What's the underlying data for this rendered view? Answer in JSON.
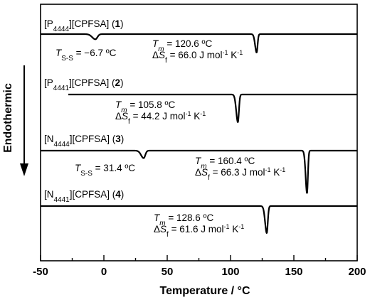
{
  "chart_data": {
    "type": "line",
    "xlabel": "Temperature / °C",
    "ylabel": "Endothermic",
    "xlim": [
      -50,
      200
    ],
    "x_ticks": [
      -50,
      0,
      50,
      100,
      150,
      200
    ],
    "grid": false,
    "series": [
      {
        "name_parts": {
          "cation": "P",
          "sub": "4444",
          "anion": "][CPFSA] (",
          "num": "1",
          "close": ")"
        },
        "peaks": [
          {
            "x": -6.7,
            "depth": 0.28,
            "width": 2.5,
            "kind": "solid-solid"
          },
          {
            "x": 120.6,
            "depth": 1.0,
            "width": 1.2,
            "kind": "melting"
          }
        ],
        "annotations": [
          {
            "type": "tss",
            "symbol": "T",
            "sub": "S-S",
            "text": " = −6.7 ºC"
          },
          {
            "type": "tm",
            "line1_symbol": "T",
            "line1_sub": "m",
            "line1_text": " = 120.6 ºC",
            "line2_prefix": "Δ",
            "line2_symbol": "S",
            "line2_sub": "f",
            "line2_text": " = 66.0 J mol",
            "line2_sup1": "-1",
            "line2_mid": " K",
            "line2_sup2": "-1"
          }
        ]
      },
      {
        "name_parts": {
          "cation": "P",
          "sub": "4441",
          "anion": "][CPFSA] (",
          "num": "2",
          "close": ")"
        },
        "peaks": [
          {
            "x": 105.8,
            "depth": 1.0,
            "width": 1.3,
            "kind": "melting"
          }
        ],
        "annotations": [
          {
            "type": "tm",
            "line1_symbol": "T",
            "line1_sub": "m",
            "line1_text": " = 105.8 ºC",
            "line2_prefix": "Δ",
            "line2_symbol": "S",
            "line2_sub": "f",
            "line2_text": " = 44.2 J mol",
            "line2_sup1": "-1",
            "line2_mid": " K",
            "line2_sup2": "-1"
          }
        ]
      },
      {
        "name_parts": {
          "cation": "N",
          "sub": "4444",
          "anion": "][CPFSA] (",
          "num": "3",
          "close": ")"
        },
        "peaks": [
          {
            "x": 31.4,
            "depth": 0.22,
            "width": 2.0,
            "kind": "solid-solid"
          },
          {
            "x": 160.4,
            "depth": 1.25,
            "width": 1.1,
            "kind": "melting"
          }
        ],
        "annotations": [
          {
            "type": "tss",
            "symbol": "T",
            "sub": "S-S",
            "text": " = 31.4 ºC"
          },
          {
            "type": "tm",
            "line1_symbol": "T",
            "line1_sub": "m",
            "line1_text": " = 160.4 ºC",
            "line2_prefix": "Δ",
            "line2_symbol": "S",
            "line2_sub": "f",
            "line2_text": " = 66.3 J mol",
            "line2_sup1": "-1",
            "line2_mid": " K",
            "line2_sup2": "-1"
          }
        ]
      },
      {
        "name_parts": {
          "cation": "N",
          "sub": "4441",
          "anion": "][CPFSA] (",
          "num": "4",
          "close": ")"
        },
        "peaks": [
          {
            "x": 128.6,
            "depth": 0.95,
            "width": 1.3,
            "kind": "melting"
          }
        ],
        "annotations": [
          {
            "type": "tm",
            "line1_symbol": "T",
            "line1_sub": "m",
            "line1_text": " = 128.6 ºC",
            "line2_prefix": "Δ",
            "line2_symbol": "S",
            "line2_sub": "f",
            "line2_text": " = 61.6 J mol",
            "line2_sup1": "-1",
            "line2_mid": " K",
            "line2_sup2": "-1"
          }
        ]
      }
    ]
  }
}
